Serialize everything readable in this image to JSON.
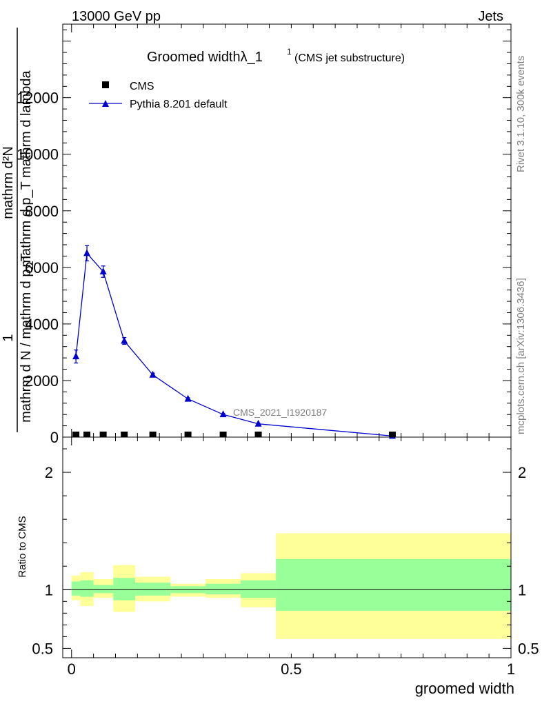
{
  "header": {
    "left": "13000 GeV pp",
    "right": "Jets"
  },
  "side": {
    "rivet": "Rivet 3.1.10,  300k events",
    "mcplots": "mcplots.cern.ch [arXiv:1306.3436]"
  },
  "chart_data": [
    {
      "type": "scatter",
      "title": "Groomed width",
      "title_symbol": "λ_1",
      "title_superscript": "1",
      "subtitle": "(CMS jet substructure)",
      "ylabel_top": "mathrm d²N",
      "ylabel_mid": "mathrm d p_T mathrm d lambda",
      "ylabel_numerator": "1",
      "ylabel_bottom": "mathrm d N / mathrm d p_T",
      "analysis_tag": "CMS_2021_I1920187",
      "ylim": [
        0,
        14600
      ],
      "yticks": [
        0,
        2000,
        4000,
        6000,
        8000,
        10000,
        12000
      ],
      "ytick_labels": [
        "0",
        "2000",
        "4000",
        "6000",
        "8000",
        "10000",
        "12000"
      ],
      "xlim": [
        -0.02,
        1.0
      ],
      "legend_position": "top-left",
      "series": [
        {
          "name": "CMS",
          "marker": "square",
          "color": "#000000",
          "x": [
            0.01,
            0.035,
            0.072,
            0.12,
            0.185,
            0.265,
            0.345,
            0.425,
            0.73
          ],
          "y": [
            15,
            15,
            15,
            15,
            15,
            15,
            15,
            15,
            15
          ]
        },
        {
          "name": "Pythia 8.201 default",
          "marker": "triangle",
          "color": "#0000cc",
          "x": [
            0.01,
            0.035,
            0.072,
            0.12,
            0.185,
            0.265,
            0.345,
            0.425,
            0.73
          ],
          "y": [
            2850,
            6500,
            5850,
            3400,
            2200,
            1350,
            800,
            470,
            40
          ],
          "yerr": [
            230,
            270,
            200,
            120,
            60,
            40,
            30,
            20,
            10
          ]
        }
      ]
    },
    {
      "type": "area",
      "ylabel": "Ratio to CMS",
      "xlabel": "groomed width",
      "ylim": [
        0.42,
        2.3
      ],
      "xlim": [
        -0.02,
        1.0
      ],
      "yticks": [
        0.5,
        1,
        2
      ],
      "ytick_labels": [
        "0.5",
        "1",
        "2"
      ],
      "xticks": [
        0,
        0.5,
        1
      ],
      "xtick_labels": [
        "0",
        "0.5",
        "1"
      ],
      "reference_line": 1,
      "bands": [
        {
          "x0": 0.0,
          "x1": 0.02,
          "stat": [
            0.95,
            1.07
          ],
          "total": [
            0.91,
            1.12
          ]
        },
        {
          "x0": 0.02,
          "x1": 0.05,
          "stat": [
            0.94,
            1.08
          ],
          "total": [
            0.86,
            1.15
          ]
        },
        {
          "x0": 0.05,
          "x1": 0.095,
          "stat": [
            0.97,
            1.04
          ],
          "total": [
            0.93,
            1.09
          ]
        },
        {
          "x0": 0.095,
          "x1": 0.145,
          "stat": [
            0.91,
            1.1
          ],
          "total": [
            0.81,
            1.21
          ]
        },
        {
          "x0": 0.145,
          "x1": 0.225,
          "stat": [
            0.95,
            1.06
          ],
          "total": [
            0.9,
            1.11
          ]
        },
        {
          "x0": 0.225,
          "x1": 0.305,
          "stat": [
            0.97,
            1.03
          ],
          "total": [
            0.94,
            1.05
          ]
        },
        {
          "x0": 0.305,
          "x1": 0.385,
          "stat": [
            0.96,
            1.05
          ],
          "total": [
            0.93,
            1.09
          ]
        },
        {
          "x0": 0.385,
          "x1": 0.465,
          "stat": [
            0.93,
            1.08
          ],
          "total": [
            0.85,
            1.14
          ]
        },
        {
          "x0": 0.465,
          "x1": 1.0,
          "stat": [
            0.82,
            1.26
          ],
          "total": [
            0.58,
            1.48
          ]
        }
      ],
      "colors": {
        "stat": "#99ff99",
        "total": "#ffff99"
      }
    }
  ]
}
